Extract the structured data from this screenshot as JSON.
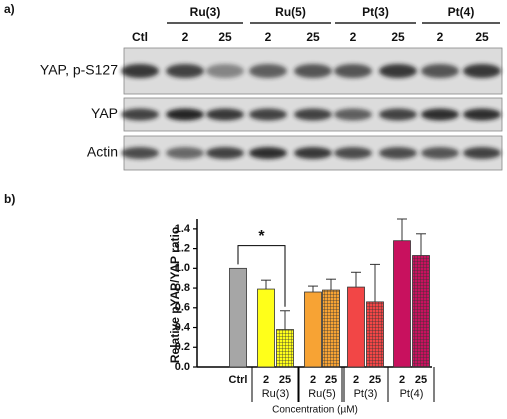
{
  "blot": {
    "label": "a)",
    "groups": [
      "Ru(3)",
      "Ru(5)",
      "Pt(3)",
      "Pt(4)"
    ],
    "lanes": [
      "Ctl",
      "2",
      "25",
      "2",
      "25",
      "2",
      "25",
      "2",
      "25"
    ],
    "rows": [
      "YAP, p-S127",
      "YAP",
      "Actin"
    ]
  },
  "chart_data": {
    "type": "bar",
    "label": "b)",
    "ylabel": "Relative pYAP/YAP ratio",
    "xlabel": "Concentration (µM)",
    "categories": [
      "Ctrl",
      "2",
      "25",
      "2",
      "25",
      "2",
      "25",
      "2",
      "25"
    ],
    "groups": [
      "Ru(3)",
      "Ru(5)",
      "Pt(3)",
      "Pt(4)"
    ],
    "values": [
      1.0,
      0.79,
      0.38,
      0.76,
      0.78,
      0.81,
      0.66,
      1.28,
      1.13
    ],
    "errors": [
      null,
      0.09,
      0.19,
      0.06,
      0.11,
      0.15,
      0.38,
      0.22,
      0.22
    ],
    "colors": [
      "#a6a6a6",
      "#ffff1a",
      "#ffff1a",
      "#f7a334",
      "#f7a334",
      "#f24646",
      "#f24646",
      "#c8115e",
      "#c8115e"
    ],
    "hatched": [
      false,
      false,
      true,
      false,
      true,
      false,
      true,
      false,
      true
    ],
    "significance": "*",
    "ylim": [
      0,
      1.5
    ],
    "yticks": [
      {
        "value": 0,
        "label": "0.0"
      },
      0.2,
      0.4,
      0.6,
      0.8,
      {
        "value": 1,
        "label": "1.0"
      },
      1.2,
      1.4
    ]
  }
}
